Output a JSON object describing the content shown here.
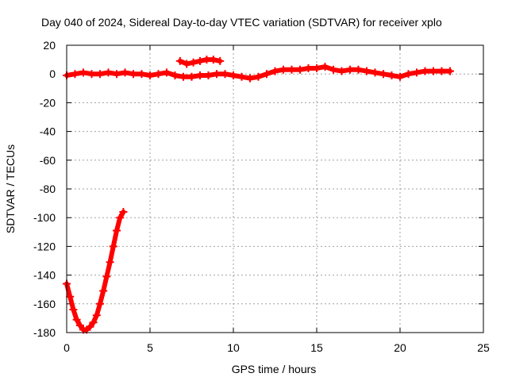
{
  "chart_data": {
    "type": "scatter",
    "title": "Day 040 of 2024, Sidereal Day-to-day VTEC variation (SDTVAR) for receiver xplo",
    "xlabel": "GPS time / hours",
    "ylabel": "SDTVAR / TECUs",
    "xlim": [
      0,
      25
    ],
    "ylim": [
      -180,
      20
    ],
    "xticks": [
      "0",
      "5",
      "10",
      "15",
      "20",
      "25"
    ],
    "yticks": [
      "20",
      "0",
      "-20",
      "-40",
      "-60",
      "-80",
      "-100",
      "-120",
      "-140",
      "-160",
      "-180"
    ],
    "grid": true,
    "marker_color": "#ff0000",
    "series": [
      {
        "name": "main-band",
        "x": [
          0.0,
          0.5,
          1.0,
          1.5,
          2.0,
          2.5,
          3.0,
          3.5,
          4.0,
          4.5,
          5.0,
          5.5,
          6.0,
          6.5,
          7.0,
          7.5,
          8.0,
          8.5,
          9.0,
          9.5,
          10.0,
          10.5,
          11.0,
          11.5,
          12.0,
          12.5,
          13.0,
          13.5,
          14.0,
          14.5,
          15.0,
          15.5,
          16.0,
          16.5,
          17.0,
          17.5,
          18.0,
          18.5,
          19.0,
          19.5,
          20.0,
          20.5,
          21.0,
          21.5,
          22.0,
          22.5,
          23.0
        ],
        "y": [
          -1,
          0,
          1,
          0,
          0,
          1,
          0,
          1,
          0,
          0,
          -1,
          0,
          1,
          -1,
          -2,
          -2,
          -1,
          -1,
          0,
          0,
          -1,
          -2,
          -3,
          -2,
          0,
          2,
          3,
          3,
          3,
          4,
          4,
          5,
          3,
          2,
          3,
          3,
          2,
          1,
          0,
          -1,
          -2,
          0,
          1,
          2,
          2,
          2,
          2
        ]
      },
      {
        "name": "upper-arc",
        "x": [
          6.8,
          7.2,
          7.6,
          8.0,
          8.4,
          8.8,
          9.2
        ],
        "y": [
          9,
          7,
          8,
          9,
          10,
          10,
          9
        ]
      },
      {
        "name": "deep-dip",
        "x": [
          0.0,
          0.2,
          0.4,
          0.6,
          0.8,
          1.0,
          1.2,
          1.4,
          1.6,
          1.8,
          2.0,
          2.2,
          2.4,
          2.6,
          2.8,
          3.0,
          3.2,
          3.4
        ],
        "y": [
          -146,
          -155,
          -164,
          -171,
          -175,
          -178,
          -178,
          -176,
          -173,
          -168,
          -160,
          -151,
          -141,
          -131,
          -120,
          -109,
          -100,
          -96
        ]
      }
    ]
  }
}
